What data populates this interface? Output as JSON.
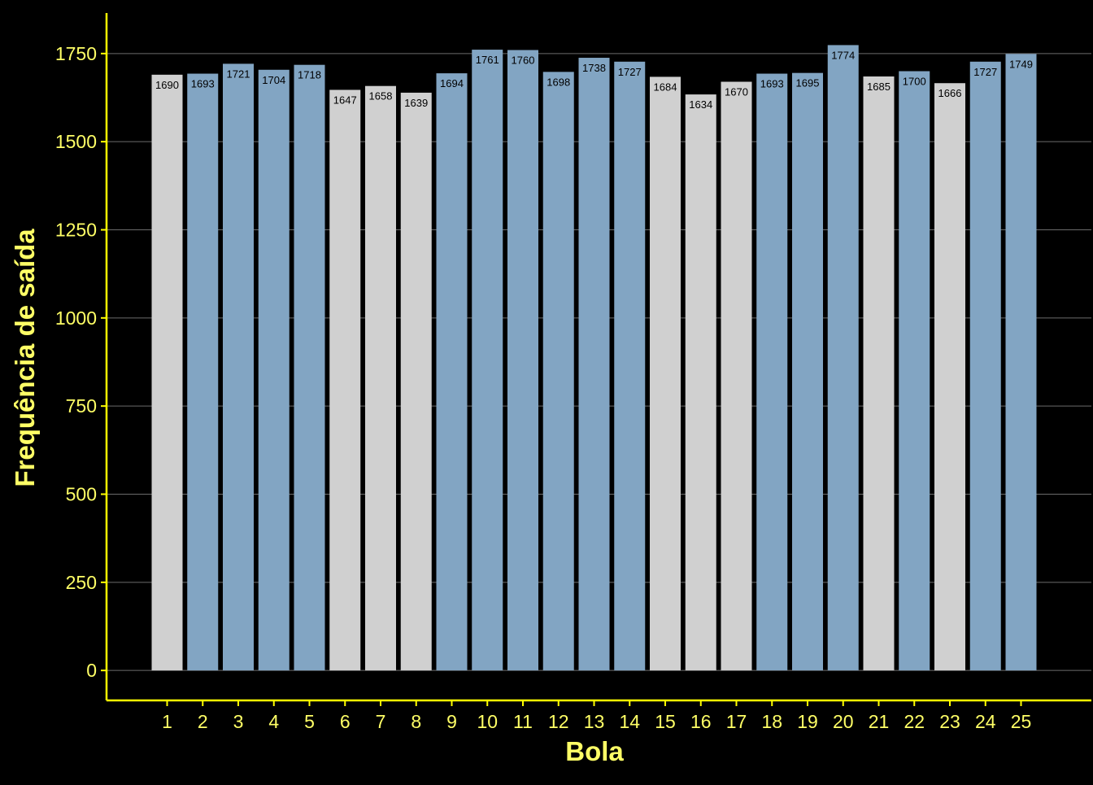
{
  "chart_data": {
    "type": "bar",
    "title": "",
    "xlabel": "Bola",
    "ylabel": "Frequência de saída",
    "categories": [
      "1",
      "2",
      "3",
      "4",
      "5",
      "6",
      "7",
      "8",
      "9",
      "10",
      "11",
      "12",
      "13",
      "14",
      "15",
      "16",
      "17",
      "18",
      "19",
      "20",
      "21",
      "22",
      "23",
      "24",
      "25"
    ],
    "values": [
      1690,
      1693,
      1721,
      1704,
      1718,
      1647,
      1658,
      1639,
      1694,
      1761,
      1760,
      1698,
      1738,
      1727,
      1684,
      1634,
      1670,
      1693,
      1695,
      1774,
      1685,
      1700,
      1666,
      1727,
      1749
    ],
    "value_labels": [
      "1690",
      "1693",
      "1721",
      "1704",
      "1718",
      "1647",
      "1658",
      "1639",
      "1694",
      "1761",
      "1760",
      "1698",
      "1738",
      "1727",
      "1684",
      "1634",
      "1670",
      "1693",
      "1695",
      "1774",
      "1685",
      "1700",
      "1666",
      "1727",
      "1749"
    ],
    "highlight_threshold": 1690,
    "ylim": [
      -85,
      1865
    ],
    "yticks": [
      0,
      250,
      500,
      750,
      1000,
      1250,
      1500,
      1750
    ],
    "ytick_labels": [
      "0",
      "250",
      "500",
      "750",
      "1000",
      "1250",
      "1500",
      "1750"
    ],
    "grid": true,
    "legend": "none",
    "colors": {
      "background": "#000000",
      "bar_above": "#82a5c3",
      "bar_below": "#d0d0d0",
      "axis": "#ffff00",
      "tick_label": "#ffff66",
      "axis_title": "#ffff66",
      "grid": "#6b6b6b",
      "value_label": "#000000"
    }
  }
}
